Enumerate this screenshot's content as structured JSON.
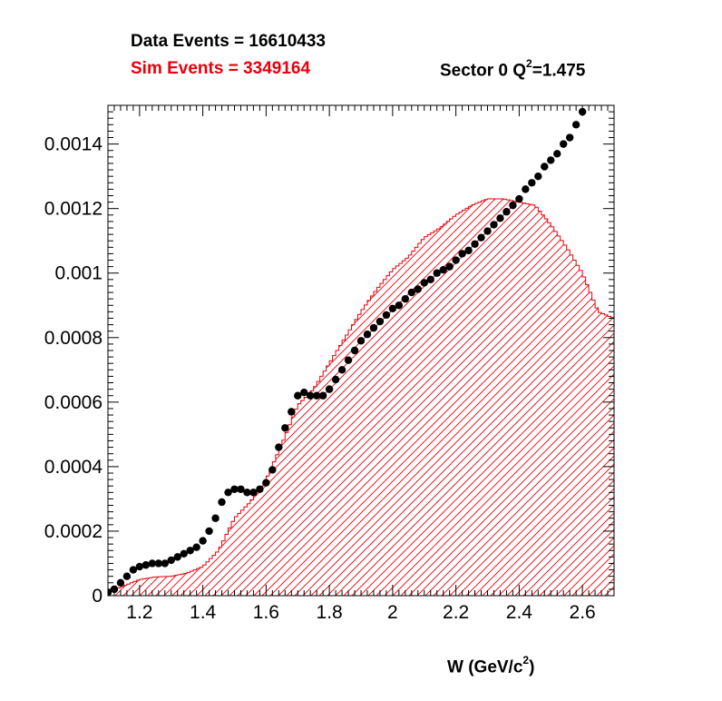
{
  "header": {
    "data_events": "Data Events = 16610433",
    "sim_events": "Sim Events = 3349164",
    "sector_prefix": "Sector 0 Q",
    "sector_sup": "2",
    "sector_suffix": "=1.475"
  },
  "colors": {
    "sim": "#e8000b",
    "data": "#000000",
    "axis": "#000000"
  },
  "chart_data": {
    "type": "scatter",
    "xlabel_prefix": "W (GeV/c",
    "xlabel_sup": "2",
    "xlabel_suffix": ")",
    "xlim": [
      1.1,
      2.7
    ],
    "ylim": [
      0,
      0.00152
    ],
    "x_ticks": [
      1.2,
      1.4,
      1.6,
      1.8,
      2.0,
      2.2,
      2.4,
      2.6
    ],
    "x_tick_labels": [
      "1.2",
      "1.4",
      "1.6",
      "1.8",
      "2",
      "2.2",
      "2.4",
      "2.6"
    ],
    "y_ticks": [
      0,
      0.0002,
      0.0004,
      0.0006,
      0.0008,
      0.001,
      0.0012,
      0.0014
    ],
    "y_tick_labels": [
      "0",
      "0.0002",
      "0.0004",
      "0.0006",
      "0.0008",
      "0.001",
      "0.0012",
      "0.0014"
    ],
    "series": [
      {
        "name": "Sim Events = 3349164",
        "style": "hatched-histogram",
        "x": [
          1.1,
          1.2,
          1.25,
          1.3,
          1.35,
          1.4,
          1.45,
          1.5,
          1.55,
          1.6,
          1.65,
          1.7,
          1.75,
          1.8,
          1.85,
          1.9,
          1.95,
          2.0,
          2.05,
          2.1,
          2.15,
          2.2,
          2.25,
          2.3,
          2.35,
          2.4,
          2.45,
          2.5,
          2.55,
          2.6,
          2.65,
          2.7
        ],
        "values": [
          1e-05,
          5e-05,
          5.8e-05,
          6e-05,
          7e-05,
          9e-05,
          0.00014,
          0.00024,
          0.00029,
          0.00036,
          0.00047,
          0.00059,
          0.00064,
          0.00072,
          0.0008,
          0.00088,
          0.00095,
          0.00101,
          0.00105,
          0.00111,
          0.00114,
          0.00118,
          0.00121,
          0.00123,
          0.00123,
          0.00122,
          0.00121,
          0.00115,
          0.00108,
          0.001,
          0.00088,
          0.00086
        ]
      },
      {
        "name": "Data Events = 16610433",
        "style": "markers",
        "x": [
          1.1,
          1.12,
          1.14,
          1.16,
          1.18,
          1.2,
          1.22,
          1.24,
          1.26,
          1.28,
          1.3,
          1.32,
          1.34,
          1.36,
          1.38,
          1.4,
          1.42,
          1.44,
          1.46,
          1.48,
          1.5,
          1.52,
          1.54,
          1.56,
          1.58,
          1.6,
          1.62,
          1.64,
          1.66,
          1.68,
          1.7,
          1.72,
          1.74,
          1.76,
          1.78,
          1.8,
          1.82,
          1.84,
          1.86,
          1.88,
          1.9,
          1.92,
          1.94,
          1.96,
          1.98,
          2.0,
          2.02,
          2.04,
          2.06,
          2.08,
          2.1,
          2.12,
          2.14,
          2.16,
          2.18,
          2.2,
          2.22,
          2.24,
          2.26,
          2.28,
          2.3,
          2.32,
          2.34,
          2.36,
          2.38,
          2.4,
          2.42,
          2.44,
          2.46,
          2.48,
          2.5,
          2.52,
          2.54,
          2.56,
          2.58,
          2.6
        ],
        "values": [
          1e-05,
          2e-05,
          4e-05,
          6e-05,
          8e-05,
          9e-05,
          9.5e-05,
          0.0001,
          0.0001,
          0.0001,
          0.00011,
          0.00012,
          0.00013,
          0.00014,
          0.00015,
          0.00017,
          0.0002,
          0.00024,
          0.00029,
          0.00032,
          0.00033,
          0.00033,
          0.00032,
          0.00032,
          0.00033,
          0.00035,
          0.00039,
          0.00046,
          0.00052,
          0.00057,
          0.00062,
          0.00063,
          0.00062,
          0.00062,
          0.00062,
          0.00064,
          0.00067,
          0.0007,
          0.00073,
          0.00076,
          0.00079,
          0.00081,
          0.00083,
          0.00085,
          0.00087,
          0.00089,
          0.0009,
          0.00092,
          0.00094,
          0.00095,
          0.00097,
          0.00098,
          0.001,
          0.00101,
          0.00102,
          0.00104,
          0.00106,
          0.00107,
          0.00109,
          0.00111,
          0.00113,
          0.00115,
          0.00117,
          0.00119,
          0.00121,
          0.00123,
          0.00126,
          0.00128,
          0.0013,
          0.00133,
          0.00135,
          0.00137,
          0.0014,
          0.00142,
          0.00146,
          0.0015
        ]
      }
    ]
  }
}
